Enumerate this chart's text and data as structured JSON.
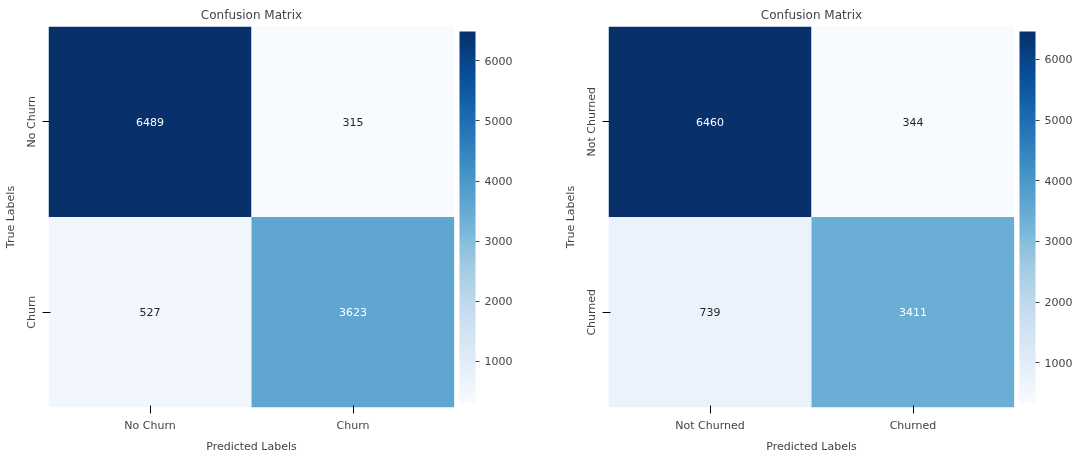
{
  "chart_data": [
    {
      "type": "heatmap",
      "title": "Confusion Matrix",
      "xlabel": "Predicted Labels",
      "ylabel": "True Labels",
      "categories": [
        "No Churn",
        "Churn"
      ],
      "y_categories": [
        "No Churn",
        "Churn"
      ],
      "cells": [
        [
          6489,
          315
        ],
        [
          527,
          3623
        ]
      ],
      "data_labels": true,
      "clim": [
        315,
        6489
      ],
      "cticks": [
        1000,
        2000,
        3000,
        4000,
        5000,
        6000
      ]
    },
    {
      "type": "heatmap",
      "title": "Confusion Matrix",
      "xlabel": "Predicted Labels",
      "ylabel": "True Labels",
      "categories": [
        "Not Churned",
        "Churned"
      ],
      "y_categories": [
        "Not Churned",
        "Churned"
      ],
      "cells": [
        [
          6460,
          344
        ],
        [
          739,
          3411
        ]
      ],
      "data_labels": true,
      "clim": [
        344,
        6460
      ],
      "cticks": [
        1000,
        2000,
        3000,
        4000,
        5000,
        6000
      ]
    }
  ]
}
